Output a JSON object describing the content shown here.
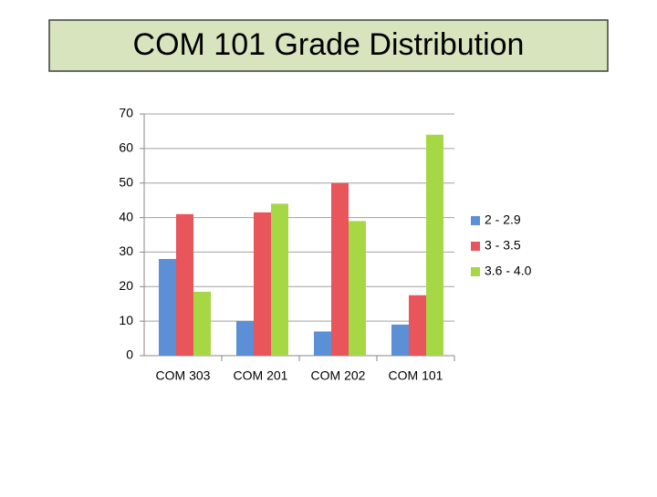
{
  "chart_data": {
    "type": "bar",
    "title": "COM 101 Grade Distribution",
    "categories": [
      "COM 303",
      "COM 201",
      "COM 202",
      "COM 101"
    ],
    "series": [
      {
        "name": "2 - 2.9",
        "color": "#5b8fd6",
        "values": [
          28,
          10,
          7,
          9
        ]
      },
      {
        "name": "3 - 3.5",
        "color": "#e8555a",
        "values": [
          41,
          41.5,
          50,
          17.5
        ]
      },
      {
        "name": "3.6 - 4.0",
        "color": "#a6d846",
        "values": [
          18.5,
          44,
          39,
          64
        ]
      }
    ],
    "ylim": [
      0,
      70
    ],
    "yticks": [
      0,
      10,
      20,
      30,
      40,
      50,
      60,
      70
    ],
    "grid": true,
    "legend": "right"
  }
}
